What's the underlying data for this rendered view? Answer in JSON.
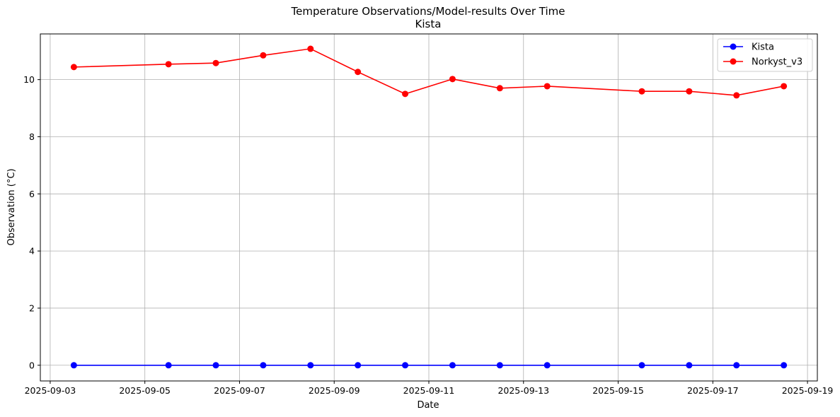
{
  "chart_data": {
    "type": "line",
    "title": "Temperature Observations/Model-results Over Time",
    "subtitle": "Kista",
    "xlabel": "Date",
    "ylabel": "Observation (°C)",
    "x_tick_labels": [
      "2025-09-03",
      "2025-09-05",
      "2025-09-07",
      "2025-09-09",
      "2025-09-11",
      "2025-09-13",
      "2025-09-15",
      "2025-09-17",
      "2025-09-19"
    ],
    "y_tick_labels": [
      "0",
      "2",
      "4",
      "6",
      "8",
      "10"
    ],
    "ylim": [
      -0.55,
      11.6
    ],
    "xlim": [
      "2025-09-02T19:00",
      "2025-09-19T05:00"
    ],
    "grid": true,
    "legend_position": "top-right",
    "x": [
      "2025-09-03T12:00",
      "2025-09-05T12:00",
      "2025-09-06T12:00",
      "2025-09-07T12:00",
      "2025-09-08T12:00",
      "2025-09-09T12:00",
      "2025-09-10T12:00",
      "2025-09-11T12:00",
      "2025-09-12T12:00",
      "2025-09-13T12:00",
      "2025-09-15T12:00",
      "2025-09-16T12:00",
      "2025-09-17T12:00",
      "2025-09-18T12:00"
    ],
    "series": [
      {
        "name": "Kista",
        "color": "#0000ff",
        "values": [
          0,
          0,
          0,
          0,
          0,
          0,
          0,
          0,
          0,
          0,
          0,
          0,
          0,
          0
        ]
      },
      {
        "name": "Norkyst_v3",
        "color": "#ff0000",
        "values": [
          10.44,
          10.54,
          10.58,
          10.85,
          11.08,
          10.27,
          9.5,
          10.02,
          9.7,
          9.77,
          9.59,
          9.59,
          9.45,
          9.77
        ]
      }
    ]
  }
}
